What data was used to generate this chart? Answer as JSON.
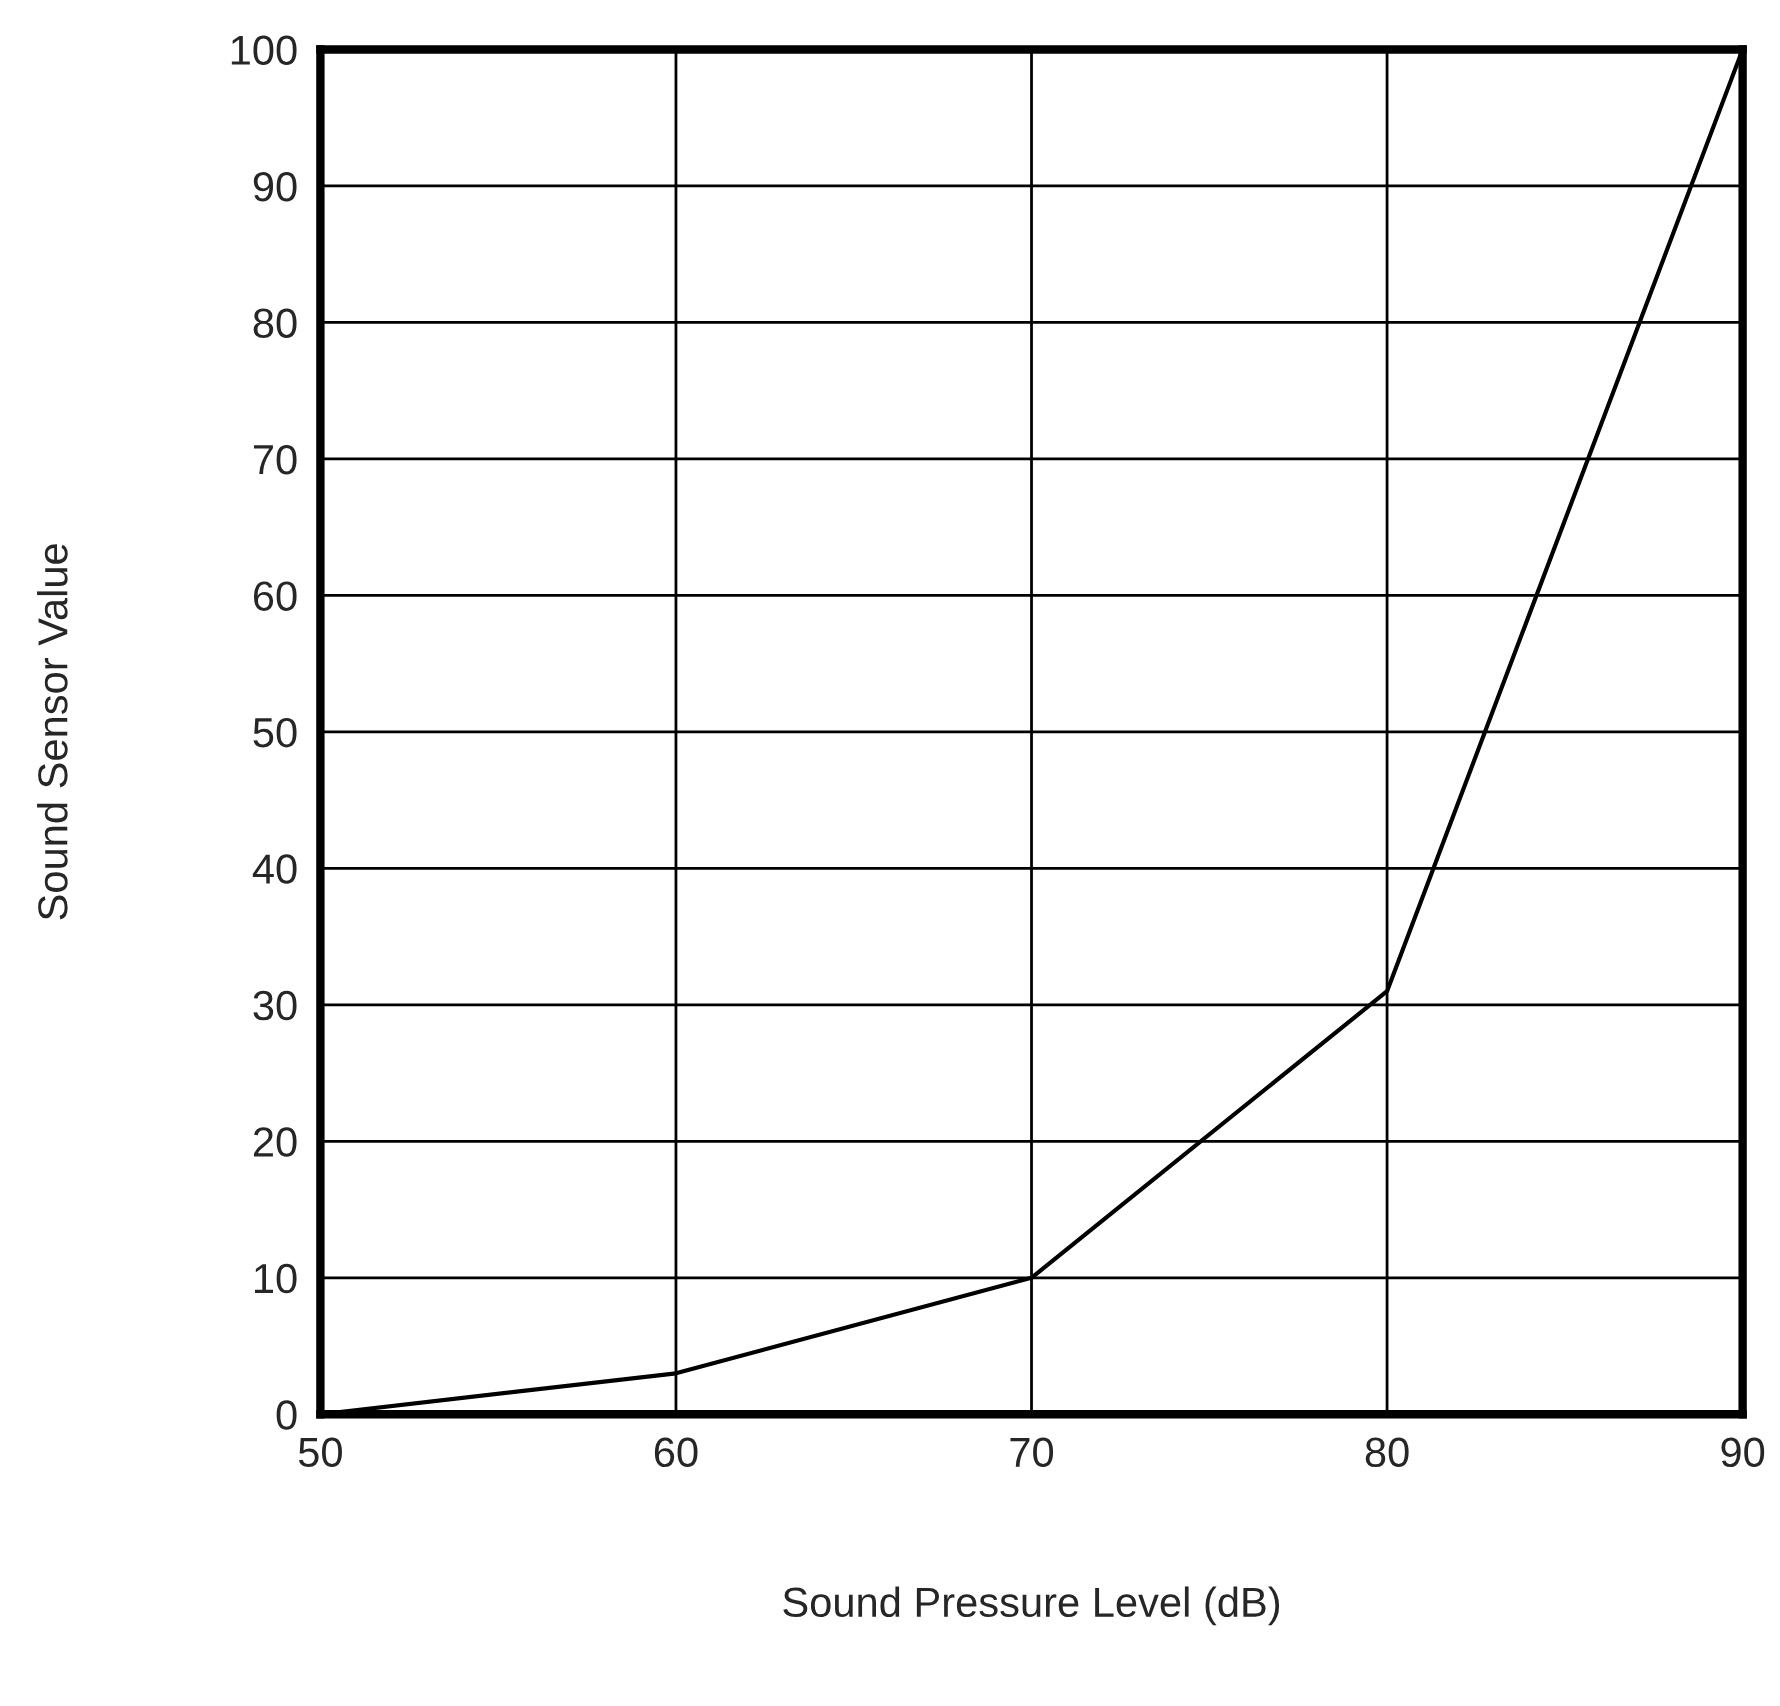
{
  "chart_data": {
    "type": "line",
    "xlabel": "Sound Pressure Level (dB)",
    "ylabel": "Sound Sensor Value",
    "x": [
      50,
      60,
      70,
      80,
      90
    ],
    "series": [
      {
        "color": "#000000",
        "values": [
          0,
          3,
          10,
          31,
          100
        ]
      }
    ],
    "xlim": [
      50,
      90
    ],
    "ylim": [
      0,
      100
    ],
    "xticks": [
      50,
      60,
      70,
      80,
      90
    ],
    "yticks": [
      0,
      10,
      20,
      30,
      40,
      50,
      60,
      70,
      80,
      90,
      100
    ],
    "grid": true,
    "marker": "none",
    "line_style": "solid",
    "legend": false
  }
}
